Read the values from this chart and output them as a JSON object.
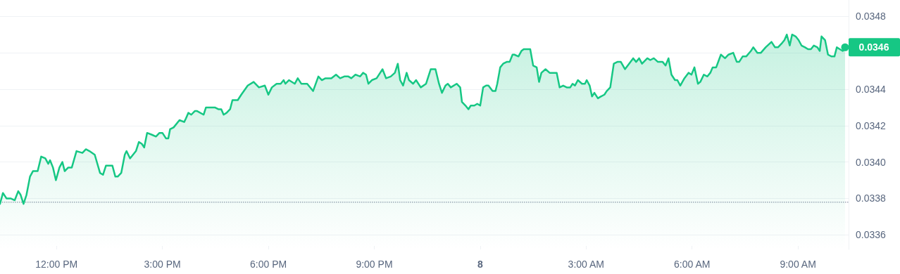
{
  "chart_data": {
    "type": "area",
    "x": [
      "--01-07T10:24",
      "--01-07T10:29",
      "--01-07T10:35",
      "--01-07T10:42",
      "--01-07T10:49",
      "--01-07T10:55",
      "--01-07T10:59",
      "--01-07T11:04",
      "--01-07T11:09",
      "--01-07T11:15",
      "--01-07T11:20",
      "--01-07T11:28",
      "--01-07T11:34",
      "--01-07T11:41",
      "--01-07T11:46",
      "--01-07T11:49",
      "--01-07T11:54",
      "--01-07T11:59",
      "--01-07T12:05",
      "--01-07T12:10",
      "--01-07T12:14",
      "--01-07T12:20",
      "--01-07T12:26",
      "--01-07T12:34",
      "--01-07T12:44",
      "--01-07T12:50",
      "--01-07T12:56",
      "--01-07T13:05",
      "--01-07T13:14",
      "--01-07T13:19",
      "--01-07T13:24",
      "--01-07T13:35",
      "--01-07T13:40",
      "--01-07T13:44",
      "--01-07T13:50",
      "--01-07T13:56",
      "--01-07T13:59",
      "--01-07T14:05",
      "--01-07T14:15",
      "--01-07T14:20",
      "--01-07T14:25",
      "--01-07T14:29",
      "--01-07T14:34",
      "--01-07T14:42",
      "--01-07T14:49",
      "--01-07T14:55",
      "--01-07T15:00",
      "--01-07T15:06",
      "--01-07T15:10",
      "--01-07T15:13",
      "--01-07T15:19",
      "--01-07T15:29",
      "--01-07T15:37",
      "--01-07T15:40",
      "--01-07T15:44",
      "--01-07T15:49",
      "--01-07T15:55",
      "--01-07T15:59",
      "--01-07T16:10",
      "--01-07T16:14",
      "--01-07T16:23",
      "--01-07T16:29",
      "--01-07T16:35",
      "--01-07T16:40",
      "--01-07T16:44",
      "--01-07T16:49",
      "--01-07T16:55",
      "--01-07T16:59",
      "--01-07T17:08",
      "--01-07T17:14",
      "--01-07T17:25",
      "--01-07T17:35",
      "--01-07T17:44",
      "--01-07T17:54",
      "--01-07T18:00",
      "--01-07T18:06",
      "--01-07T18:14",
      "--01-07T18:21",
      "--01-07T18:26",
      "--01-07T18:29",
      "--01-07T18:35",
      "--01-07T18:45",
      "--01-07T18:50",
      "--01-07T18:56",
      "--01-07T19:06",
      "--01-07T19:16",
      "--01-07T19:25",
      "--01-07T19:31",
      "--01-07T19:37",
      "--01-07T19:47",
      "--01-07T19:55",
      "--01-07T20:02",
      "--01-07T20:09",
      "--01-07T20:16",
      "--01-07T20:21",
      "--01-07T20:28",
      "--01-07T20:36",
      "--01-07T20:41",
      "--01-07T20:46",
      "--01-07T20:50",
      "--01-07T20:56",
      "--01-07T21:04",
      "--01-07T21:10",
      "--01-07T21:14",
      "--01-07T21:20",
      "--01-07T21:28",
      "--01-07T21:35",
      "--01-07T21:40",
      "--01-07T21:44",
      "--01-07T21:49",
      "--01-07T21:55",
      "--01-07T21:59",
      "--01-07T22:06",
      "--01-07T22:11",
      "--01-07T22:19",
      "--01-07T22:28",
      "--01-07T22:36",
      "--01-07T22:44",
      "--01-07T22:50",
      "--01-07T22:55",
      "--01-07T23:01",
      "--01-07T23:05",
      "--01-07T23:10",
      "--01-07T23:20",
      "--01-07T23:26",
      "--01-07T23:29",
      "--01-07T23:35",
      "--01-07T23:40",
      "--01-07T23:44",
      "--01-07T23:50",
      "--01-07T23:55",
      "--01-08T00:00",
      "--01-08T00:05",
      "--01-08T00:10",
      "--01-08T00:14",
      "--01-08T00:21",
      "--01-08T00:26",
      "--01-08T00:29",
      "--01-08T00:34",
      "--01-08T00:39",
      "--01-08T00:45",
      "--01-08T00:50",
      "--01-08T00:55",
      "--01-08T00:58",
      "--01-08T01:05",
      "--01-08T01:10",
      "--01-08T01:14",
      "--01-08T01:25",
      "--01-08T01:30",
      "--01-08T01:36",
      "--01-08T01:40",
      "--01-08T01:44",
      "--01-08T01:51",
      "--01-08T01:58",
      "--01-08T02:05",
      "--01-08T02:10",
      "--01-08T02:15",
      "--01-08T02:21",
      "--01-08T02:27",
      "--01-08T02:33",
      "--01-08T02:37",
      "--01-08T02:41",
      "--01-08T02:46",
      "--01-08T02:53",
      "--01-08T02:58",
      "--01-08T03:01",
      "--01-08T03:06",
      "--01-08T03:10",
      "--01-08T03:14",
      "--01-08T03:20",
      "--01-08T03:25",
      "--01-08T03:31",
      "--01-08T03:35",
      "--01-08T03:41",
      "--01-08T03:47",
      "--01-08T03:53",
      "--01-08T03:59",
      "--01-08T04:06",
      "--01-08T04:13",
      "--01-08T04:20",
      "--01-08T04:25",
      "--01-08T04:30",
      "--01-08T04:35",
      "--01-08T04:44",
      "--01-08T04:49",
      "--01-08T04:55",
      "--01-08T05:02",
      "--01-08T05:10",
      "--01-08T05:15",
      "--01-08T05:20",
      "--01-08T05:25",
      "--01-08T05:31",
      "--01-08T05:35",
      "--01-08T05:40",
      "--01-08T05:47",
      "--01-08T05:54",
      "--01-08T05:59",
      "--01-08T06:04",
      "--01-08T06:10",
      "--01-08T06:14",
      "--01-08T06:20",
      "--01-08T06:26",
      "--01-08T06:31",
      "--01-08T06:35",
      "--01-08T06:41",
      "--01-08T06:49",
      "--01-08T06:56",
      "--01-08T07:02",
      "--01-08T07:10",
      "--01-08T07:16",
      "--01-08T07:20",
      "--01-08T07:26",
      "--01-08T07:32",
      "--01-08T07:40",
      "--01-08T07:44",
      "--01-08T07:51",
      "--01-08T07:57",
      "--01-08T08:05",
      "--01-08T08:15",
      "--01-08T08:21",
      "--01-08T08:26",
      "--01-08T08:32",
      "--01-08T08:37",
      "--01-08T08:41",
      "--01-08T08:46",
      "--01-08T08:50",
      "--01-08T08:56",
      "--01-08T09:01",
      "--01-08T09:06",
      "--01-08T09:12",
      "--01-08T09:17",
      "--01-08T09:22",
      "--01-08T09:27",
      "--01-08T09:33",
      "--01-08T09:37",
      "--01-08T09:40",
      "--01-08T09:46",
      "--01-08T09:51",
      "--01-08T09:57",
      "--01-08T10:02",
      "--01-08T10:06",
      "--01-08T10:11",
      "--01-08T10:16",
      "--01-08T10:20"
    ],
    "series": [
      {
        "color": "#16c784",
        "values": [
          0.03377,
          0.03383,
          0.0338,
          0.0338,
          0.03379,
          0.03384,
          0.03382,
          0.03377,
          0.03382,
          0.03392,
          0.03395,
          0.03395,
          0.03403,
          0.03402,
          0.03399,
          0.03401,
          0.03397,
          0.0339,
          0.03397,
          0.034,
          0.03395,
          0.03397,
          0.03397,
          0.03406,
          0.03405,
          0.03407,
          0.03406,
          0.03404,
          0.03394,
          0.03393,
          0.03398,
          0.03398,
          0.03392,
          0.03392,
          0.03394,
          0.03404,
          0.03406,
          0.03402,
          0.03406,
          0.03411,
          0.0341,
          0.03408,
          0.03416,
          0.03415,
          0.03414,
          0.03416,
          0.03416,
          0.03413,
          0.03413,
          0.03418,
          0.03419,
          0.03423,
          0.03422,
          0.03424,
          0.03427,
          0.03426,
          0.03428,
          0.03428,
          0.03426,
          0.0343,
          0.0343,
          0.0343,
          0.03429,
          0.03429,
          0.03426,
          0.03427,
          0.03429,
          0.03434,
          0.03434,
          0.03437,
          0.03442,
          0.03444,
          0.03441,
          0.03442,
          0.03437,
          0.03441,
          0.03443,
          0.03443,
          0.03445,
          0.03443,
          0.03445,
          0.03443,
          0.03446,
          0.03443,
          0.03443,
          0.03439,
          0.03447,
          0.03445,
          0.03446,
          0.03446,
          0.03448,
          0.03446,
          0.03447,
          0.03447,
          0.03446,
          0.03448,
          0.03447,
          0.03449,
          0.03448,
          0.03443,
          0.03445,
          0.03446,
          0.03449,
          0.03451,
          0.03446,
          0.03447,
          0.03449,
          0.03454,
          0.03445,
          0.03442,
          0.03449,
          0.03445,
          0.03443,
          0.03445,
          0.03441,
          0.03443,
          0.03451,
          0.03451,
          0.03443,
          0.03438,
          0.03442,
          0.03443,
          0.03441,
          0.03443,
          0.03441,
          0.03433,
          0.03431,
          0.03429,
          0.03431,
          0.03431,
          0.03432,
          0.03431,
          0.03441,
          0.03442,
          0.03442,
          0.03439,
          0.03439,
          0.03443,
          0.03452,
          0.03454,
          0.03455,
          0.03455,
          0.03459,
          0.03459,
          0.03458,
          0.03461,
          0.03462,
          0.03462,
          0.03453,
          0.03452,
          0.03444,
          0.03449,
          0.03451,
          0.03449,
          0.03449,
          0.03449,
          0.03441,
          0.03442,
          0.03441,
          0.03441,
          0.03443,
          0.03442,
          0.03445,
          0.03443,
          0.03443,
          0.03445,
          0.03442,
          0.03436,
          0.03438,
          0.03435,
          0.03436,
          0.03437,
          0.03439,
          0.03441,
          0.03454,
          0.03455,
          0.03455,
          0.03451,
          0.03454,
          0.03457,
          0.03455,
          0.03457,
          0.03454,
          0.03457,
          0.03456,
          0.03457,
          0.03455,
          0.03455,
          0.03453,
          0.03457,
          0.03448,
          0.03445,
          0.03445,
          0.03442,
          0.03446,
          0.03449,
          0.03448,
          0.03452,
          0.03443,
          0.03444,
          0.03448,
          0.03447,
          0.03449,
          0.03452,
          0.03452,
          0.03459,
          0.03457,
          0.03459,
          0.0346,
          0.03455,
          0.03455,
          0.03458,
          0.03458,
          0.03461,
          0.03463,
          0.0346,
          0.0346,
          0.03463,
          0.03466,
          0.03463,
          0.03463,
          0.03465,
          0.03467,
          0.0347,
          0.03464,
          0.0347,
          0.03469,
          0.03467,
          0.03464,
          0.03463,
          0.03462,
          0.03462,
          0.03464,
          0.03463,
          0.03461,
          0.03469,
          0.03467,
          0.03459,
          0.03458,
          0.03458,
          0.03463,
          0.03462,
          0.03461,
          0.03463
        ]
      }
    ],
    "xlim": [
      "--01-07T10:24",
      "--01-08T10:26"
    ],
    "xticks": [
      {
        "value": "--01-07T12:00",
        "label": "12:00 PM"
      },
      {
        "value": "--01-07T15:00",
        "label": "3:00 PM"
      },
      {
        "value": "--01-07T18:00",
        "label": "6:00 PM"
      },
      {
        "value": "--01-07T21:00",
        "label": "9:00 PM"
      },
      {
        "value": "--01-08T00:00",
        "label": "8"
      },
      {
        "value": "--01-08T03:00",
        "label": "3:00 AM"
      },
      {
        "value": "--01-08T06:00",
        "label": "6:00 AM"
      },
      {
        "value": "--01-08T09:00",
        "label": "9:00 AM"
      }
    ],
    "ylim": [
      0.03352,
      0.03489
    ],
    "yticks": [
      0.0336,
      0.0338,
      {
        "value": 0.034,
        "label": "0.0340"
      },
      0.0342,
      0.0344,
      {
        "value": 0.0346,
        "label": null
      },
      0.0348
    ],
    "ref_lines": [
      {
        "axis": "y",
        "value": 0.03378,
        "color": "#a0a6b8",
        "line_style": "dotted"
      }
    ],
    "annotations": [
      {
        "text": "0.0346",
        "x": "--01-08T10:20",
        "y": 0.03463
      }
    ],
    "grid": "y",
    "marker": "none",
    "line_style": "solid"
  }
}
